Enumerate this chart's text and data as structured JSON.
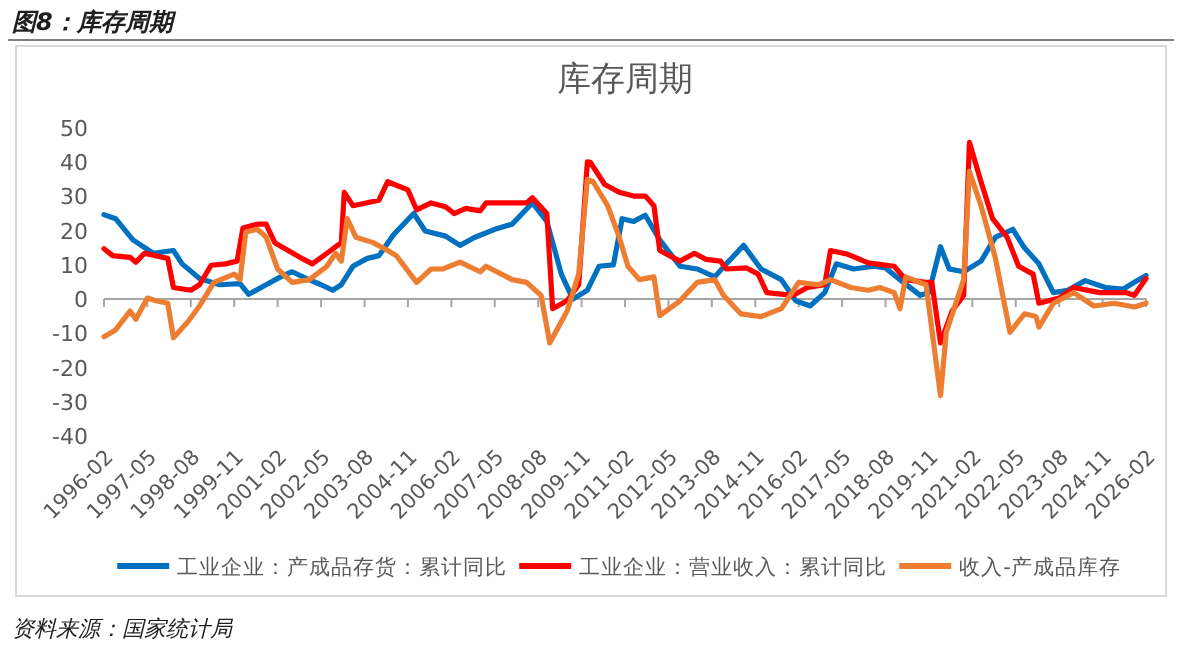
{
  "chart_data": {
    "type": "line",
    "title": "库存周期",
    "annotations": [
      "图8：库存周期",
      "资料来源：国家统计局"
    ],
    "xlim": [
      "1996-02",
      "2026-02"
    ],
    "xticks": [
      {
        "value": "1996-02",
        "label": "1996-02"
      },
      {
        "value": "1997-05",
        "label": "1997-05"
      },
      {
        "value": "1998-08",
        "label": "1998-08"
      },
      {
        "value": "1999-11",
        "label": "1999-11"
      },
      {
        "value": "2001-02",
        "label": "2001-02"
      },
      {
        "value": "2002-05",
        "label": "2002-05"
      },
      {
        "value": "2003-08",
        "label": "2003-08"
      },
      {
        "value": "2004-11",
        "label": "2004-11"
      },
      {
        "value": "2006-02",
        "label": "2006-02"
      },
      {
        "value": "2007-05",
        "label": "2007-05"
      },
      {
        "value": "2008-08",
        "label": "2008-08"
      },
      {
        "value": "2009-11",
        "label": "2009-11"
      },
      {
        "value": "2011-02",
        "label": "2011-02"
      },
      {
        "value": "2012-05",
        "label": "2012-05"
      },
      {
        "value": "2013-08",
        "label": "2013-08"
      },
      {
        "value": "2014-11",
        "label": "2014-11"
      },
      {
        "value": "2016-02",
        "label": "2016-02"
      },
      {
        "value": "2017-05",
        "label": "2017-05"
      },
      {
        "value": "2018-08",
        "label": "2018-08"
      },
      {
        "value": "2019-11",
        "label": "2019-11"
      },
      {
        "value": "2021-02",
        "label": "2021-02"
      },
      {
        "value": "2022-05",
        "label": "2022-05"
      },
      {
        "value": "2023-08",
        "label": "2023-08"
      },
      {
        "value": "2024-11",
        "label": "2024-11"
      },
      {
        "value": "2026-02",
        "label": "2026-02"
      }
    ],
    "ylim": [
      -40,
      50
    ],
    "yticks": [
      -40,
      -30,
      -20,
      -10,
      0,
      10,
      20,
      30,
      40,
      50
    ],
    "legend": "bottom",
    "marker": "none",
    "line_style": "solid",
    "series": [
      {
        "name": "工业企业：产成品存货：累计同比",
        "color": "#0070c0",
        "x": [
          "1996-02",
          "1996-06",
          "1996-12",
          "1997-07",
          "1998-02",
          "1998-05",
          "1998-11",
          "1999-06",
          "2000-01",
          "2000-04",
          "2000-10",
          "2001-03",
          "2001-07",
          "2001-12",
          "2002-05",
          "2002-09",
          "2002-12",
          "2003-04",
          "2003-09",
          "2004-01",
          "2004-06",
          "2005-01",
          "2005-05",
          "2005-12",
          "2006-05",
          "2006-10",
          "2007-05",
          "2007-11",
          "2008-06",
          "2008-11",
          "2009-04",
          "2009-08",
          "2010-01",
          "2010-05",
          "2010-10",
          "2011-01",
          "2011-05",
          "2011-09",
          "2012-02",
          "2012-09",
          "2013-03",
          "2013-09",
          "2014-01",
          "2014-07",
          "2015-01",
          "2015-08",
          "2016-01",
          "2016-06",
          "2016-11",
          "2017-03",
          "2017-09",
          "2018-04",
          "2018-08",
          "2019-01",
          "2019-08",
          "2019-11",
          "2020-03",
          "2020-06",
          "2020-11",
          "2021-05",
          "2021-10",
          "2022-04",
          "2022-08",
          "2023-01",
          "2023-06",
          "2023-11",
          "2024-05",
          "2024-12",
          "2025-06",
          "2025-10",
          "2026-02"
        ],
        "values": [
          24.7,
          23.5,
          17.3,
          13.4,
          14.2,
          10.3,
          6,
          4.2,
          4.5,
          1.4,
          4.2,
          6.5,
          8,
          6,
          4.2,
          2.6,
          4.2,
          9.6,
          11.9,
          12.7,
          18.8,
          25,
          19.9,
          18.4,
          15.7,
          18,
          20.4,
          21.9,
          28.1,
          22.7,
          7.3,
          0,
          2.6,
          9.6,
          10,
          23.5,
          22.7,
          24.5,
          17.3,
          9.6,
          8.8,
          6.5,
          10.3,
          15.7,
          8.8,
          5.7,
          -0.5,
          -2,
          1.9,
          10.3,
          8.8,
          9.6,
          9.1,
          5.7,
          1.1,
          1.9,
          15.3,
          8.8,
          8,
          11.1,
          18.1,
          20.4,
          15,
          10.3,
          1.9,
          2.6,
          5.4,
          3.4,
          2.9,
          4.9,
          6.9
        ]
      },
      {
        "name": "工业企业：营业收入：累计同比",
        "color": "#ff0000",
        "x": [
          "1996-02",
          "1996-05",
          "1996-11",
          "1997-01",
          "1997-04",
          "1997-12",
          "1998-02",
          "1998-08",
          "1998-11",
          "1999-03",
          "1999-08",
          "1999-12",
          "2000-02",
          "2000-07",
          "2000-10",
          "2001-01",
          "2001-05",
          "2001-11",
          "2002-02",
          "2002-07",
          "2002-12",
          "2003-01",
          "2003-04",
          "2004-01",
          "2004-04",
          "2004-11",
          "2005-02",
          "2005-07",
          "2005-12",
          "2006-03",
          "2006-07",
          "2006-12",
          "2007-02",
          "2008-04",
          "2008-06",
          "2008-11",
          "2009-01",
          "2009-06",
          "2009-10",
          "2010-01",
          "2010-02",
          "2010-07",
          "2010-12",
          "2011-05",
          "2011-09",
          "2011-12",
          "2012-02",
          "2012-09",
          "2013-02",
          "2013-06",
          "2013-11",
          "2014-01",
          "2014-08",
          "2014-12",
          "2015-03",
          "2015-12",
          "2016-05",
          "2016-11",
          "2017-01",
          "2017-07",
          "2018-02",
          "2018-11",
          "2019-03",
          "2019-10",
          "2019-12",
          "2020-03",
          "2020-07",
          "2020-11",
          "2021-01",
          "2021-05",
          "2021-09",
          "2022-02",
          "2022-06",
          "2022-11",
          "2023-01",
          "2023-08",
          "2024-01",
          "2024-10",
          "2025-07",
          "2025-10",
          "2026-02"
        ],
        "values": [
          14.7,
          12.7,
          12.2,
          10.8,
          13.4,
          11.9,
          3.4,
          2.6,
          4.2,
          9.9,
          10.3,
          11.1,
          20.8,
          21.9,
          21.9,
          16.5,
          14.5,
          11.6,
          10.3,
          13.4,
          16.5,
          31.2,
          27.3,
          28.9,
          34.3,
          31.9,
          26.1,
          28.1,
          27,
          25,
          26.5,
          25.8,
          28.1,
          28.1,
          29.6,
          25,
          -2.8,
          -0.5,
          4.2,
          40.1,
          40,
          33.5,
          31.2,
          30.1,
          30.1,
          27.3,
          14.2,
          11.1,
          13.4,
          11.6,
          11.1,
          8.8,
          9.1,
          7.3,
          1.9,
          1.1,
          3.4,
          4.2,
          14.2,
          13.1,
          10.6,
          9.6,
          5.7,
          4.9,
          4.9,
          -12.8,
          -3.5,
          1.1,
          45.8,
          34.3,
          23.5,
          18.1,
          9.6,
          7.3,
          -1.2,
          0.3,
          3.4,
          1.9,
          1.9,
          1.1,
          6
        ]
      },
      {
        "name": "收入-产成品库存",
        "color": "#ed7d31",
        "x": [
          "1996-02",
          "1996-06",
          "1996-11",
          "1997-01",
          "1997-05",
          "1997-08",
          "1997-12",
          "1998-02",
          "1998-07",
          "1998-11",
          "1999-04",
          "1999-11",
          "2000-01",
          "2000-03",
          "2000-07",
          "2000-10",
          "2001-02",
          "2001-07",
          "2002-01",
          "2002-07",
          "2002-10",
          "2002-12",
          "2003-02",
          "2003-05",
          "2003-11",
          "2004-04",
          "2004-07",
          "2005-02",
          "2005-07",
          "2005-11",
          "2006-05",
          "2006-12",
          "2007-02",
          "2007-11",
          "2008-04",
          "2008-09",
          "2008-12",
          "2009-06",
          "2009-10",
          "2010-01",
          "2010-03",
          "2010-08",
          "2010-12",
          "2011-03",
          "2011-07",
          "2011-12",
          "2012-02",
          "2012-09",
          "2013-03",
          "2013-09",
          "2013-12",
          "2014-06",
          "2015-01",
          "2015-08",
          "2016-02",
          "2016-09",
          "2017-01",
          "2017-08",
          "2018-02",
          "2018-06",
          "2018-11",
          "2019-01",
          "2019-03",
          "2019-10",
          "2020-03",
          "2020-05",
          "2020-11",
          "2021-01",
          "2021-05",
          "2021-10",
          "2022-03",
          "2022-08",
          "2022-12",
          "2023-01",
          "2023-06",
          "2024-01",
          "2024-08",
          "2025-03",
          "2025-10",
          "2026-02"
        ],
        "values": [
          -11,
          -9,
          -3.5,
          -5.9,
          0.3,
          -0.5,
          -1.2,
          -11.3,
          -6.6,
          -2,
          4.9,
          7.3,
          5.7,
          19.6,
          20.4,
          18.1,
          8.8,
          4.9,
          5.7,
          9.6,
          13.4,
          11.1,
          23.5,
          18.1,
          16.5,
          14.2,
          12.7,
          4.9,
          8.8,
          8.8,
          10.8,
          8,
          9.6,
          5.7,
          4.9,
          1.1,
          -12.8,
          -3.5,
          7.3,
          35,
          34.3,
          27.3,
          18.1,
          9.6,
          5.7,
          6.5,
          -4.8,
          -0.5,
          4.9,
          5.7,
          1.1,
          -4.3,
          -5.1,
          -2.8,
          4.9,
          4.2,
          5.7,
          3.4,
          2.6,
          3.4,
          1.9,
          -2.8,
          6.5,
          4.2,
          -28.2,
          -9.7,
          5.7,
          37.3,
          27.3,
          11.9,
          -9.7,
          -4.3,
          -5.1,
          -8.2,
          -1.2,
          1.9,
          -2,
          -1.2,
          -2.3,
          -1.2
        ]
      }
    ]
  }
}
